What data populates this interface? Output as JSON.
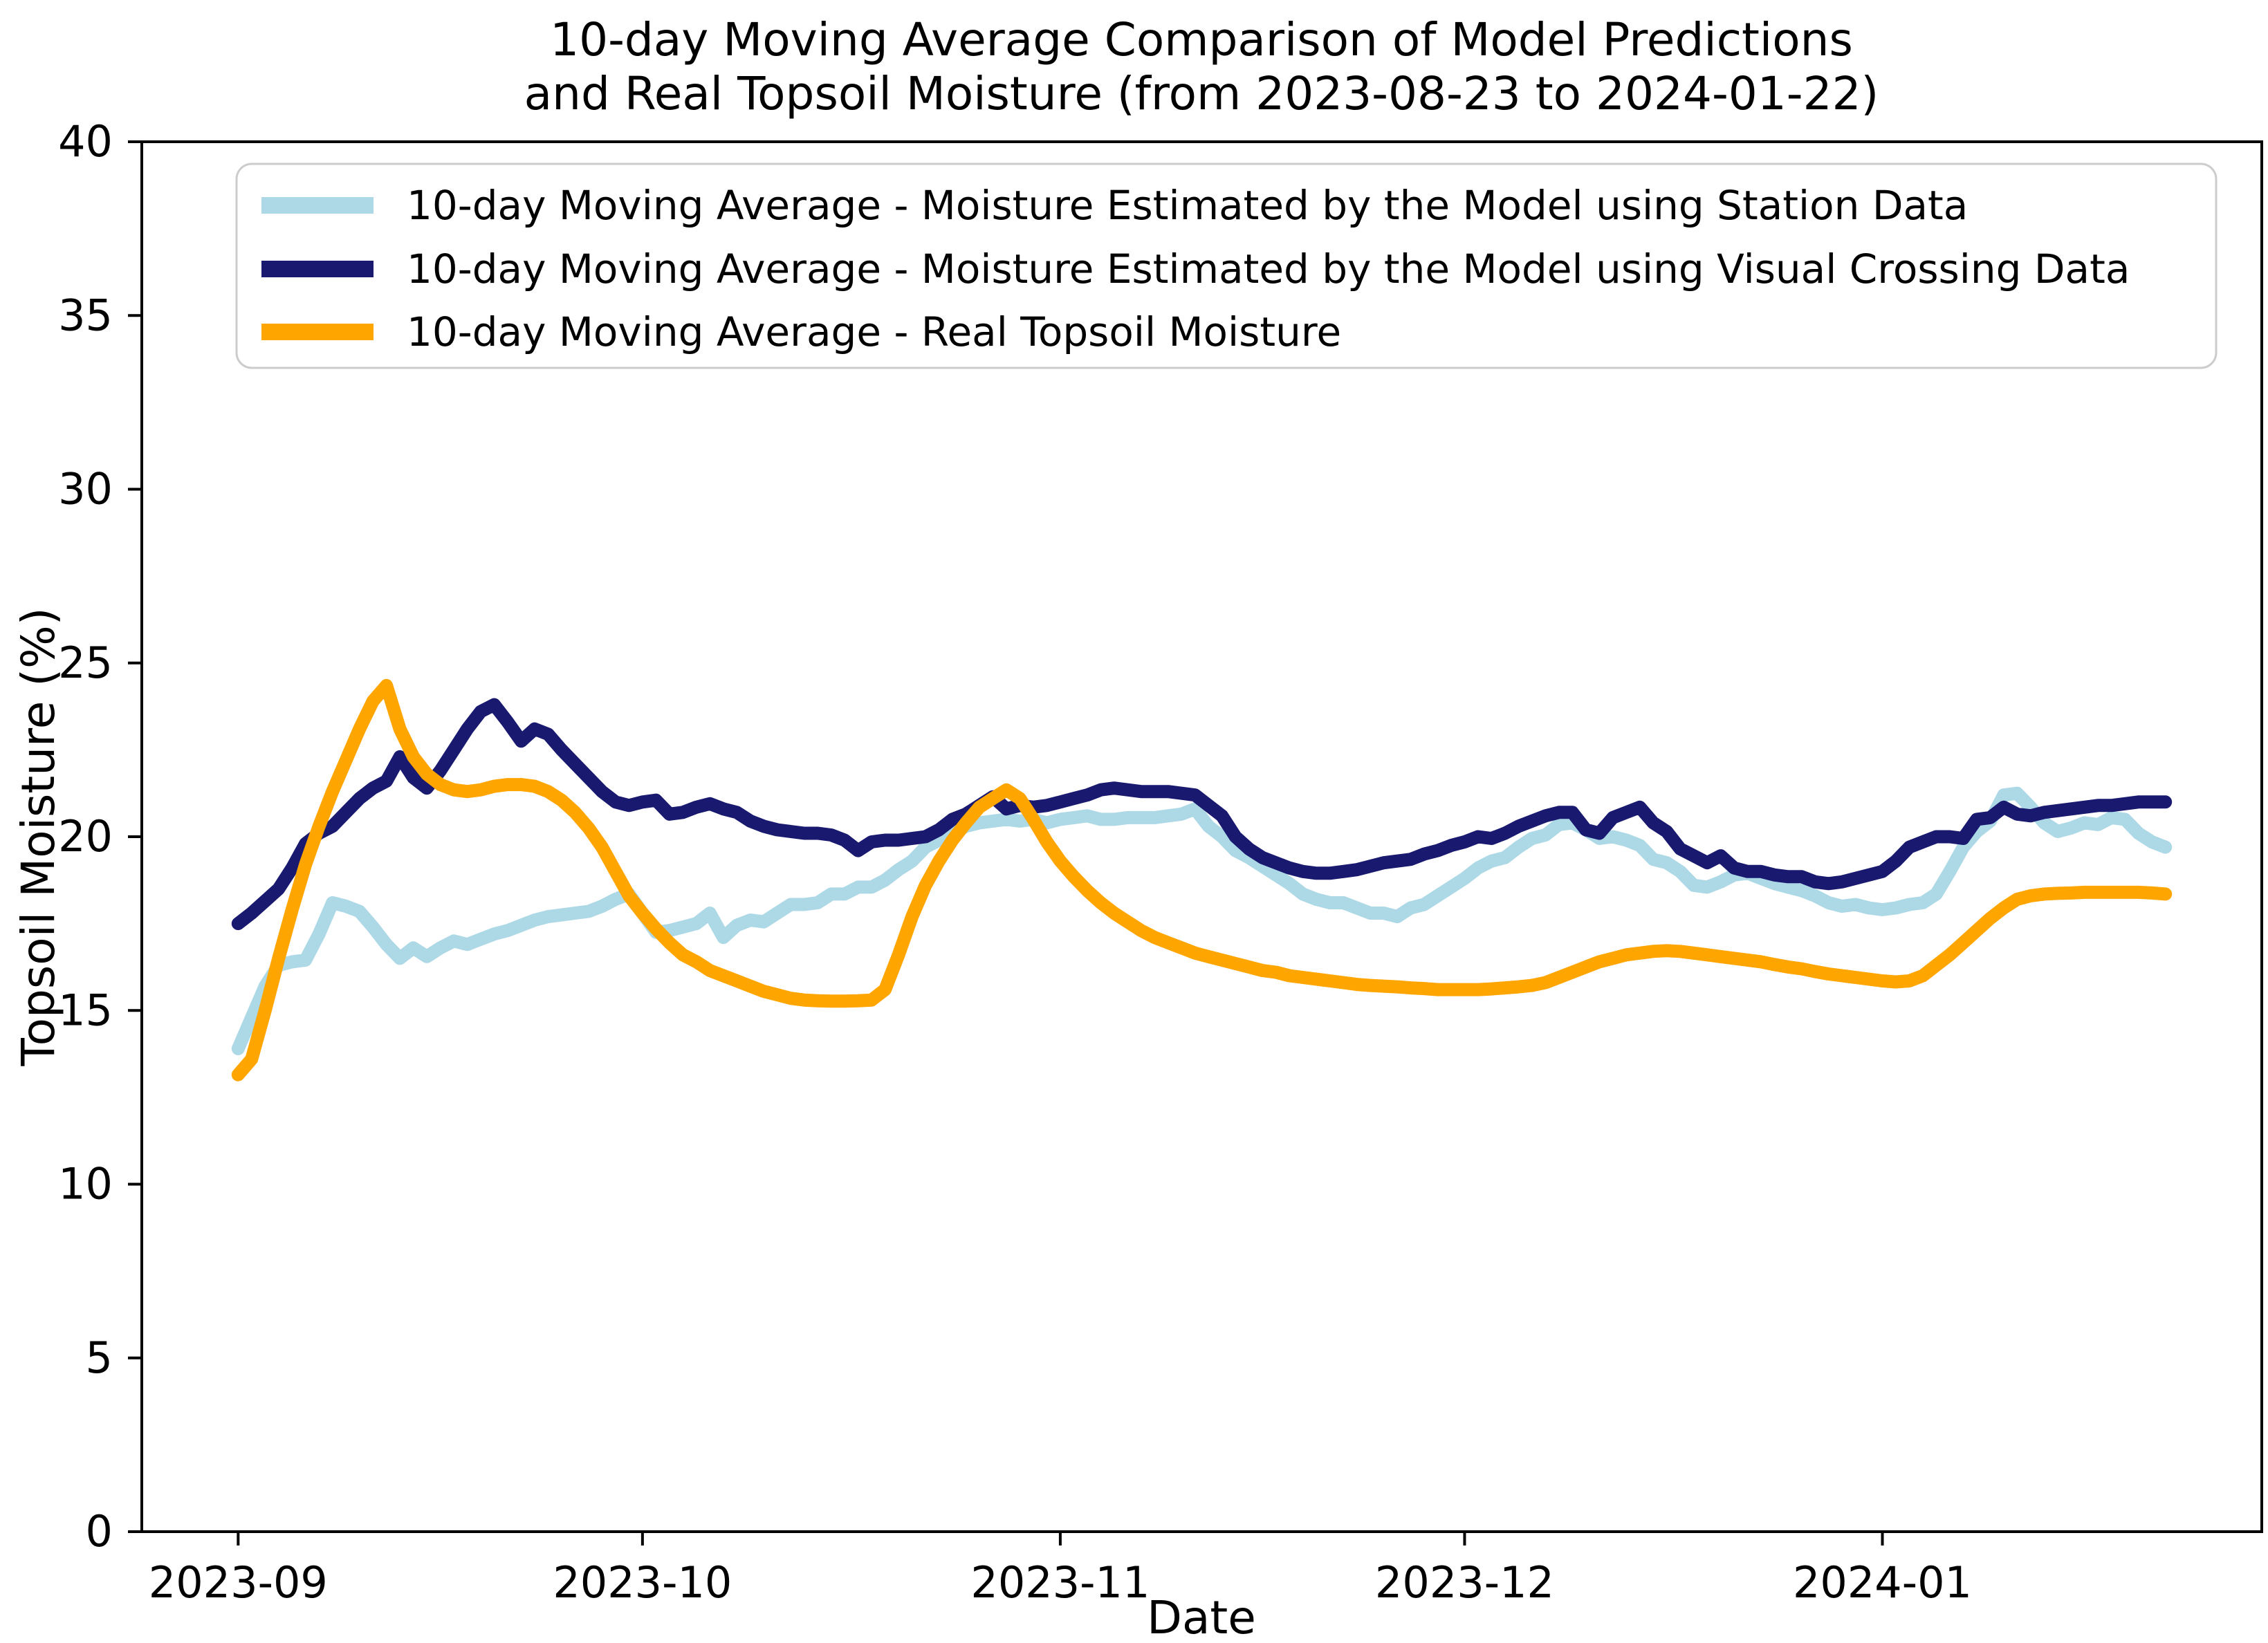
{
  "title": {
    "line1": "10-day Moving Average Comparison of Model Predictions",
    "line2": "and Real Topsoil Moisture (from 2023-08-23 to 2024-01-22)"
  },
  "axes": {
    "x_label": "Date",
    "y_label": "Topsoil Moisture (%)"
  },
  "chart_data": {
    "type": "line",
    "title": "10-day Moving Average Comparison of Model Predictions and Real Topsoil Moisture (from 2023-08-23 to 2024-01-22)",
    "xlabel": "Date",
    "ylabel": "Topsoil Moisture (%)",
    "ylim": [
      0,
      40
    ],
    "xlim_days": [
      -7.15,
      150.15
    ],
    "grid": false,
    "legend_position": "upper left",
    "y_ticks": [
      0,
      5,
      10,
      15,
      20,
      25,
      30,
      35,
      40
    ],
    "x_ticks": [
      {
        "day": 0,
        "label": "2023-09"
      },
      {
        "day": 30,
        "label": "2023-10"
      },
      {
        "day": 61,
        "label": "2023-11"
      },
      {
        "day": 91,
        "label": "2023-12"
      },
      {
        "day": 122,
        "label": "2024-01"
      }
    ],
    "x_unit": "days after first plotted point (tick 2023-09)",
    "series": [
      {
        "name": "10-day Moving Average - Moisture Estimated by the Model using Station Data",
        "color": "#ADD8E6",
        "values": [
          13.9,
          14.8,
          15.7,
          16.3,
          16.4,
          16.45,
          17.2,
          18.1,
          18.0,
          17.85,
          17.4,
          16.9,
          16.5,
          16.8,
          16.55,
          16.8,
          17.0,
          16.9,
          17.05,
          17.2,
          17.3,
          17.45,
          17.6,
          17.7,
          17.75,
          17.8,
          17.85,
          18.0,
          18.2,
          18.35,
          17.8,
          17.25,
          17.3,
          17.4,
          17.5,
          17.8,
          17.1,
          17.45,
          17.6,
          17.55,
          17.8,
          18.05,
          18.05,
          18.1,
          18.35,
          18.35,
          18.55,
          18.55,
          18.75,
          19.05,
          19.3,
          19.7,
          19.9,
          20.1,
          20.3,
          20.4,
          20.45,
          20.5,
          20.45,
          20.5,
          20.4,
          20.5,
          20.55,
          20.6,
          20.5,
          20.5,
          20.55,
          20.55,
          20.55,
          20.6,
          20.65,
          20.8,
          20.3,
          20.0,
          19.6,
          19.4,
          19.15,
          18.9,
          18.65,
          18.35,
          18.2,
          18.1,
          18.1,
          17.95,
          17.8,
          17.8,
          17.7,
          17.95,
          18.05,
          18.3,
          18.55,
          18.8,
          19.1,
          19.3,
          19.4,
          19.7,
          19.95,
          20.05,
          20.35,
          20.4,
          20.2,
          19.95,
          20.0,
          19.9,
          19.75,
          19.35,
          19.25,
          19.0,
          18.6,
          18.55,
          18.7,
          18.9,
          18.95,
          18.8,
          18.65,
          18.55,
          18.45,
          18.3,
          18.1,
          18.0,
          18.05,
          17.95,
          17.9,
          17.95,
          18.05,
          18.1,
          18.35,
          19.0,
          19.7,
          20.15,
          20.45,
          21.2,
          21.25,
          20.85,
          20.4,
          20.15,
          20.25,
          20.4,
          20.35,
          20.55,
          20.5,
          20.1,
          19.85,
          19.7
        ]
      },
      {
        "name": "10-day Moving Average - Moisture Estimated by the Model using Visual Crossing Data",
        "color": "#191970",
        "values": [
          17.5,
          17.8,
          18.15,
          18.5,
          19.1,
          19.8,
          20.1,
          20.3,
          20.7,
          21.1,
          21.4,
          21.6,
          22.3,
          21.7,
          21.4,
          21.9,
          22.5,
          23.1,
          23.6,
          23.8,
          23.3,
          22.75,
          23.1,
          22.95,
          22.5,
          22.1,
          21.7,
          21.3,
          21.0,
          20.9,
          21.0,
          21.05,
          20.65,
          20.7,
          20.85,
          20.95,
          20.8,
          20.7,
          20.45,
          20.3,
          20.2,
          20.15,
          20.1,
          20.1,
          20.05,
          19.9,
          19.6,
          19.85,
          19.9,
          19.9,
          19.95,
          20.0,
          20.2,
          20.5,
          20.65,
          20.9,
          21.15,
          20.8,
          20.9,
          20.85,
          20.9,
          21.0,
          21.1,
          21.2,
          21.35,
          21.4,
          21.35,
          21.3,
          21.3,
          21.3,
          21.25,
          21.2,
          20.9,
          20.6,
          20.0,
          19.65,
          19.4,
          19.25,
          19.1,
          19.0,
          18.95,
          18.95,
          19.0,
          19.05,
          19.15,
          19.25,
          19.3,
          19.35,
          19.5,
          19.6,
          19.75,
          19.85,
          20.0,
          19.95,
          20.1,
          20.3,
          20.45,
          20.6,
          20.7,
          20.7,
          20.2,
          20.1,
          20.55,
          20.7,
          20.85,
          20.4,
          20.15,
          19.65,
          19.45,
          19.25,
          19.45,
          19.1,
          19.0,
          19.0,
          18.9,
          18.85,
          18.85,
          18.7,
          18.65,
          18.7,
          18.8,
          18.9,
          19.0,
          19.3,
          19.7,
          19.85,
          20.0,
          20.0,
          19.95,
          20.5,
          20.55,
          20.85,
          20.65,
          20.6,
          20.7,
          20.75,
          20.8,
          20.85,
          20.9,
          20.9,
          20.95,
          21.0,
          21.0,
          21.0
        ]
      },
      {
        "name": "10-day Moving Average - Real Topsoil Moisture",
        "color": "#FFA500",
        "values": [
          13.15,
          13.6,
          15.0,
          16.5,
          17.9,
          19.2,
          20.3,
          21.3,
          22.2,
          23.1,
          23.9,
          24.35,
          23.1,
          22.3,
          21.8,
          21.5,
          21.35,
          21.3,
          21.35,
          21.45,
          21.5,
          21.5,
          21.45,
          21.3,
          21.05,
          20.7,
          20.25,
          19.7,
          19.0,
          18.3,
          17.8,
          17.35,
          16.95,
          16.6,
          16.4,
          16.15,
          16.0,
          15.85,
          15.7,
          15.55,
          15.45,
          15.35,
          15.3,
          15.28,
          15.27,
          15.27,
          15.28,
          15.3,
          15.6,
          16.6,
          17.7,
          18.6,
          19.3,
          19.9,
          20.4,
          20.85,
          21.1,
          21.35,
          21.1,
          20.5,
          19.85,
          19.3,
          18.85,
          18.45,
          18.1,
          17.8,
          17.55,
          17.3,
          17.1,
          16.95,
          16.8,
          16.65,
          16.55,
          16.45,
          16.35,
          16.25,
          16.15,
          16.1,
          16.0,
          15.95,
          15.9,
          15.85,
          15.8,
          15.75,
          15.72,
          15.7,
          15.68,
          15.65,
          15.63,
          15.6,
          15.6,
          15.6,
          15.6,
          15.62,
          15.65,
          15.68,
          15.72,
          15.8,
          15.95,
          16.1,
          16.25,
          16.4,
          16.5,
          16.6,
          16.65,
          16.7,
          16.72,
          16.7,
          16.65,
          16.6,
          16.55,
          16.5,
          16.45,
          16.4,
          16.32,
          16.25,
          16.2,
          16.12,
          16.05,
          16.0,
          15.95,
          15.9,
          15.85,
          15.82,
          15.85,
          16.0,
          16.3,
          16.6,
          16.95,
          17.3,
          17.65,
          17.95,
          18.2,
          18.3,
          18.35,
          18.37,
          18.38,
          18.4,
          18.4,
          18.4,
          18.4,
          18.4,
          18.38,
          18.35
        ]
      }
    ]
  }
}
